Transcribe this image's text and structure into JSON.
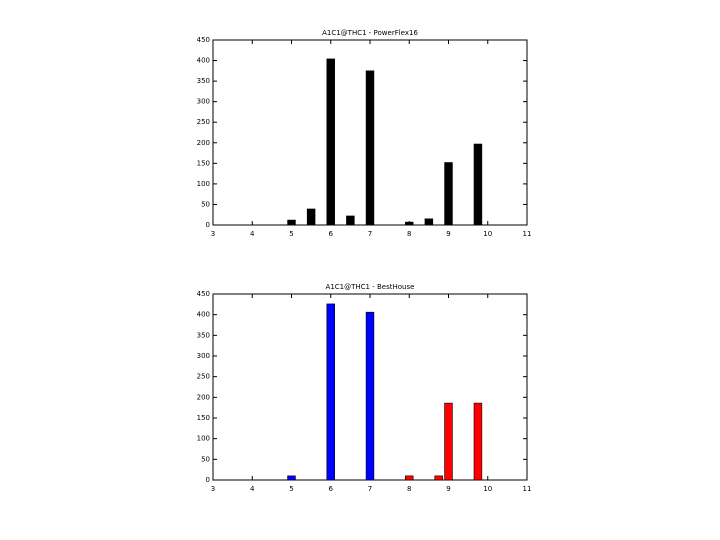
{
  "chart_data": [
    {
      "type": "bar",
      "title": "A1C1@THC1 - PowerFlex16",
      "series": [
        {
          "color": "#000000",
          "x": [
            5,
            5.5,
            6,
            6.5,
            7,
            8,
            8.5,
            9,
            9.75
          ],
          "values": [
            12,
            39,
            404,
            22,
            375,
            7,
            15,
            152,
            197
          ]
        }
      ],
      "xlim": [
        3,
        11
      ],
      "xticks": [
        3,
        4,
        5,
        6,
        7,
        8,
        9,
        10,
        11
      ],
      "ylim": [
        0,
        450
      ],
      "yticks": [
        0,
        50,
        100,
        150,
        200,
        250,
        300,
        350,
        400,
        450
      ],
      "grid": false
    },
    {
      "type": "bar",
      "title": "A1C1@THC1 - BestHouse",
      "series": [
        {
          "color": "#0000ff",
          "x": [
            5,
            6,
            7
          ],
          "values": [
            10,
            426,
            406
          ]
        },
        {
          "color": "#ff0000",
          "x": [
            8,
            8.75,
            9,
            9.75
          ],
          "values": [
            10,
            10,
            186,
            186
          ]
        }
      ],
      "xlim": [
        3,
        11
      ],
      "xticks": [
        3,
        4,
        5,
        6,
        7,
        8,
        9,
        10,
        11
      ],
      "ylim": [
        0,
        450
      ],
      "yticks": [
        0,
        50,
        100,
        150,
        200,
        250,
        300,
        350,
        400,
        450
      ],
      "grid": false
    }
  ]
}
